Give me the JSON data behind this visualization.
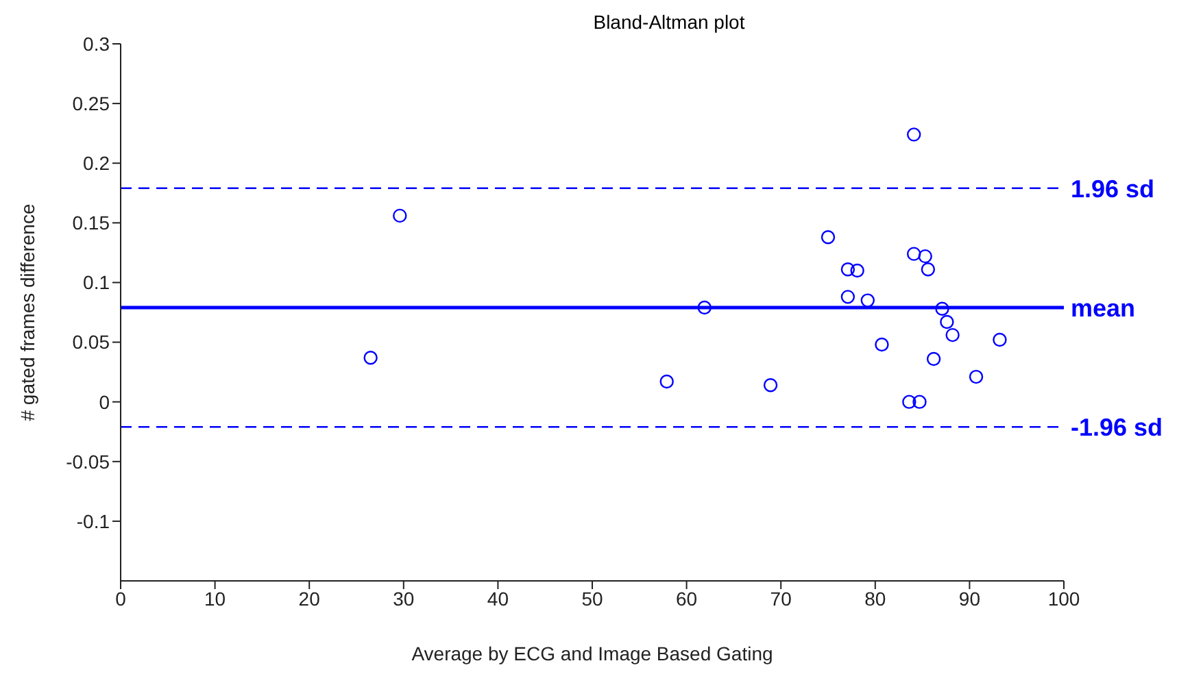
{
  "chart_data": {
    "type": "scatter",
    "title": "Bland-Altman plot",
    "xlabel": "Average by ECG and Image Based Gating",
    "ylabel": "# gated frames difference",
    "x": [
      26.5,
      29.6,
      57.9,
      61.9,
      68.9,
      75.0,
      84.1,
      77.1,
      78.1,
      77.1,
      79.2,
      84.1,
      85.3,
      85.6,
      87.1,
      87.6,
      88.2,
      80.7,
      86.2,
      90.7,
      93.2,
      83.6,
      84.7
    ],
    "series": [
      {
        "color": "#0000ff",
        "values": [
          0.037,
          0.156,
          0.017,
          0.079,
          0.014,
          0.138,
          0.224,
          0.111,
          0.11,
          0.088,
          0.085,
          0.124,
          0.122,
          0.111,
          0.078,
          0.067,
          0.056,
          0.048,
          0.036,
          0.021,
          0.052,
          0.0,
          0.0
        ]
      }
    ],
    "xlim": [
      0,
      100
    ],
    "xticks": [
      0,
      10,
      20,
      30,
      40,
      50,
      60,
      70,
      80,
      90,
      100
    ],
    "ylim": [
      -0.15,
      0.3
    ],
    "yticks": [
      -0.1,
      -0.05,
      0,
      0.05,
      0.1,
      0.15,
      0.2,
      0.25,
      0.3
    ],
    "ref_lines": [
      {
        "axis": "y",
        "value": 0.179,
        "label": "1.96 sd",
        "color": "#0000ff",
        "line_style": "dashed"
      },
      {
        "axis": "y",
        "value": 0.079,
        "label": "mean",
        "color": "#0000ff",
        "line_style": "solid"
      },
      {
        "axis": "y",
        "value": -0.021,
        "label": "-1.96 sd",
        "color": "#0000ff",
        "line_style": "dashed"
      }
    ],
    "marker": "circle",
    "grid": false,
    "legend": false
  }
}
